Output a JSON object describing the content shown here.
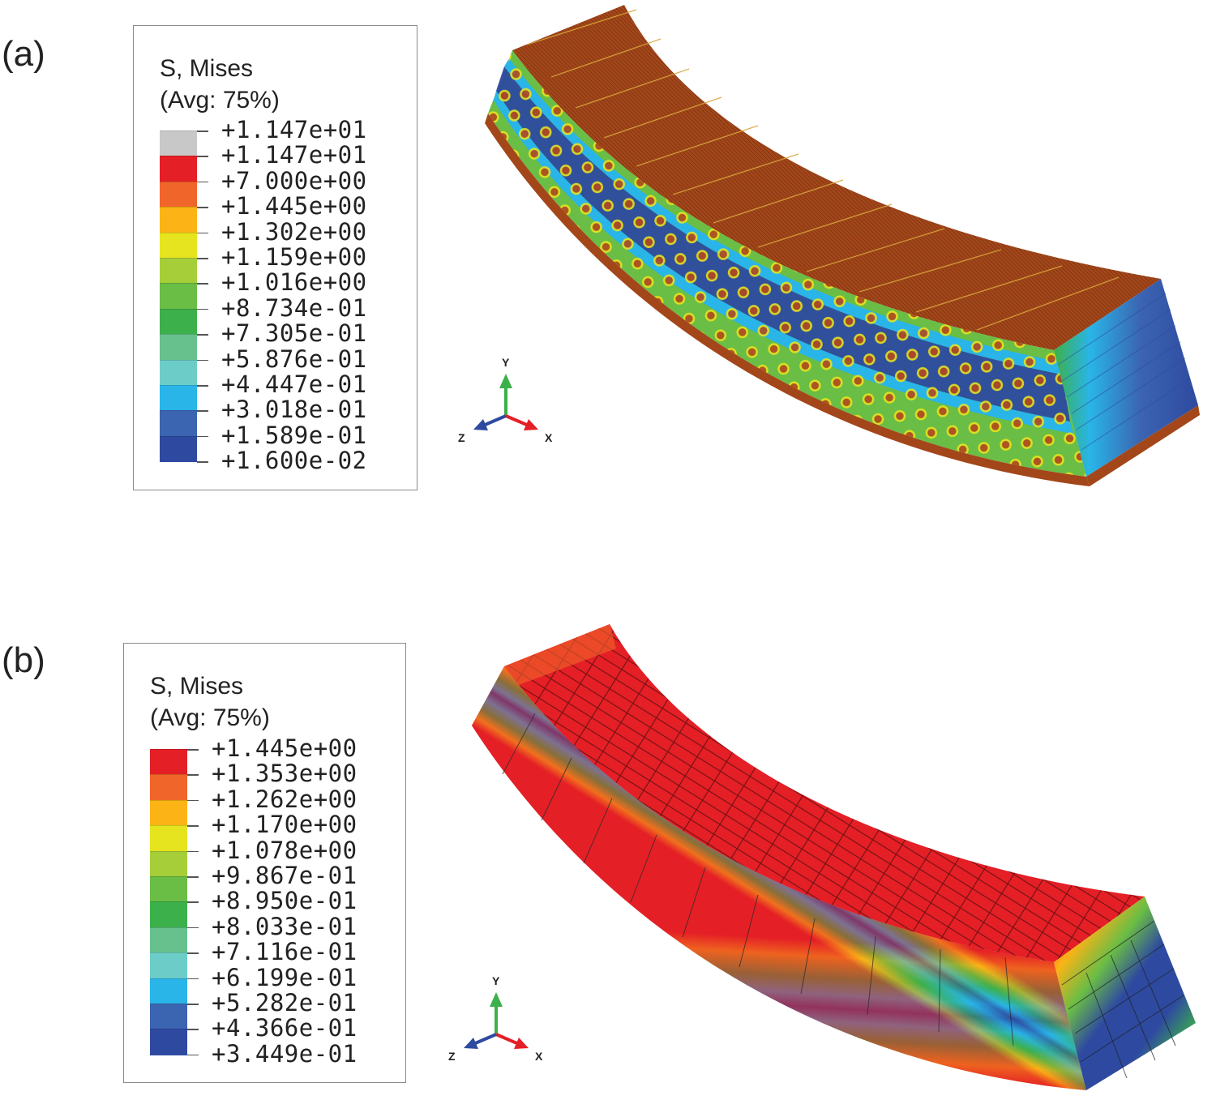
{
  "panels": [
    {
      "id": "a",
      "label": "(a)",
      "legend": {
        "title_line1": "S, Mises",
        "title_line2": "(Avg: 75%)",
        "values": [
          "+1.147e+01",
          "+1.147e+01",
          "+7.000e+00",
          "+1.445e+00",
          "+1.302e+00",
          "+1.159e+00",
          "+1.016e+00",
          "+8.734e-01",
          "+7.305e-01",
          "+5.876e-01",
          "+4.447e-01",
          "+3.018e-01",
          "+1.589e-01",
          "+1.600e-02"
        ],
        "colors": [
          "#c8c8c8",
          "#e41f26",
          "#f0652a",
          "#fbb316",
          "#e6e41e",
          "#a6ce39",
          "#6abd45",
          "#3cb04a",
          "#66c18c",
          "#6ccdc8",
          "#29b5e8",
          "#3b64b1",
          "#2e4aa0"
        ]
      },
      "triad": {
        "y": "Y",
        "x": "X",
        "z": "Z"
      }
    },
    {
      "id": "b",
      "label": "(b)",
      "legend": {
        "title_line1": "S, Mises",
        "title_line2": "(Avg: 75%)",
        "values": [
          "+1.445e+00",
          "+1.353e+00",
          "+1.262e+00",
          "+1.170e+00",
          "+1.078e+00",
          "+9.867e-01",
          "+8.950e-01",
          "+8.033e-01",
          "+7.116e-01",
          "+6.199e-01",
          "+5.282e-01",
          "+4.366e-01",
          "+3.449e-01"
        ],
        "colors": [
          "#e41f26",
          "#f0652a",
          "#fbb316",
          "#e6e41e",
          "#a6ce39",
          "#6abd45",
          "#3cb04a",
          "#66c18c",
          "#6ccdc8",
          "#29b5e8",
          "#3b64b1",
          "#2e4aa0"
        ]
      },
      "triad": {
        "y": "Y",
        "x": "X",
        "z": "Z"
      }
    }
  ]
}
